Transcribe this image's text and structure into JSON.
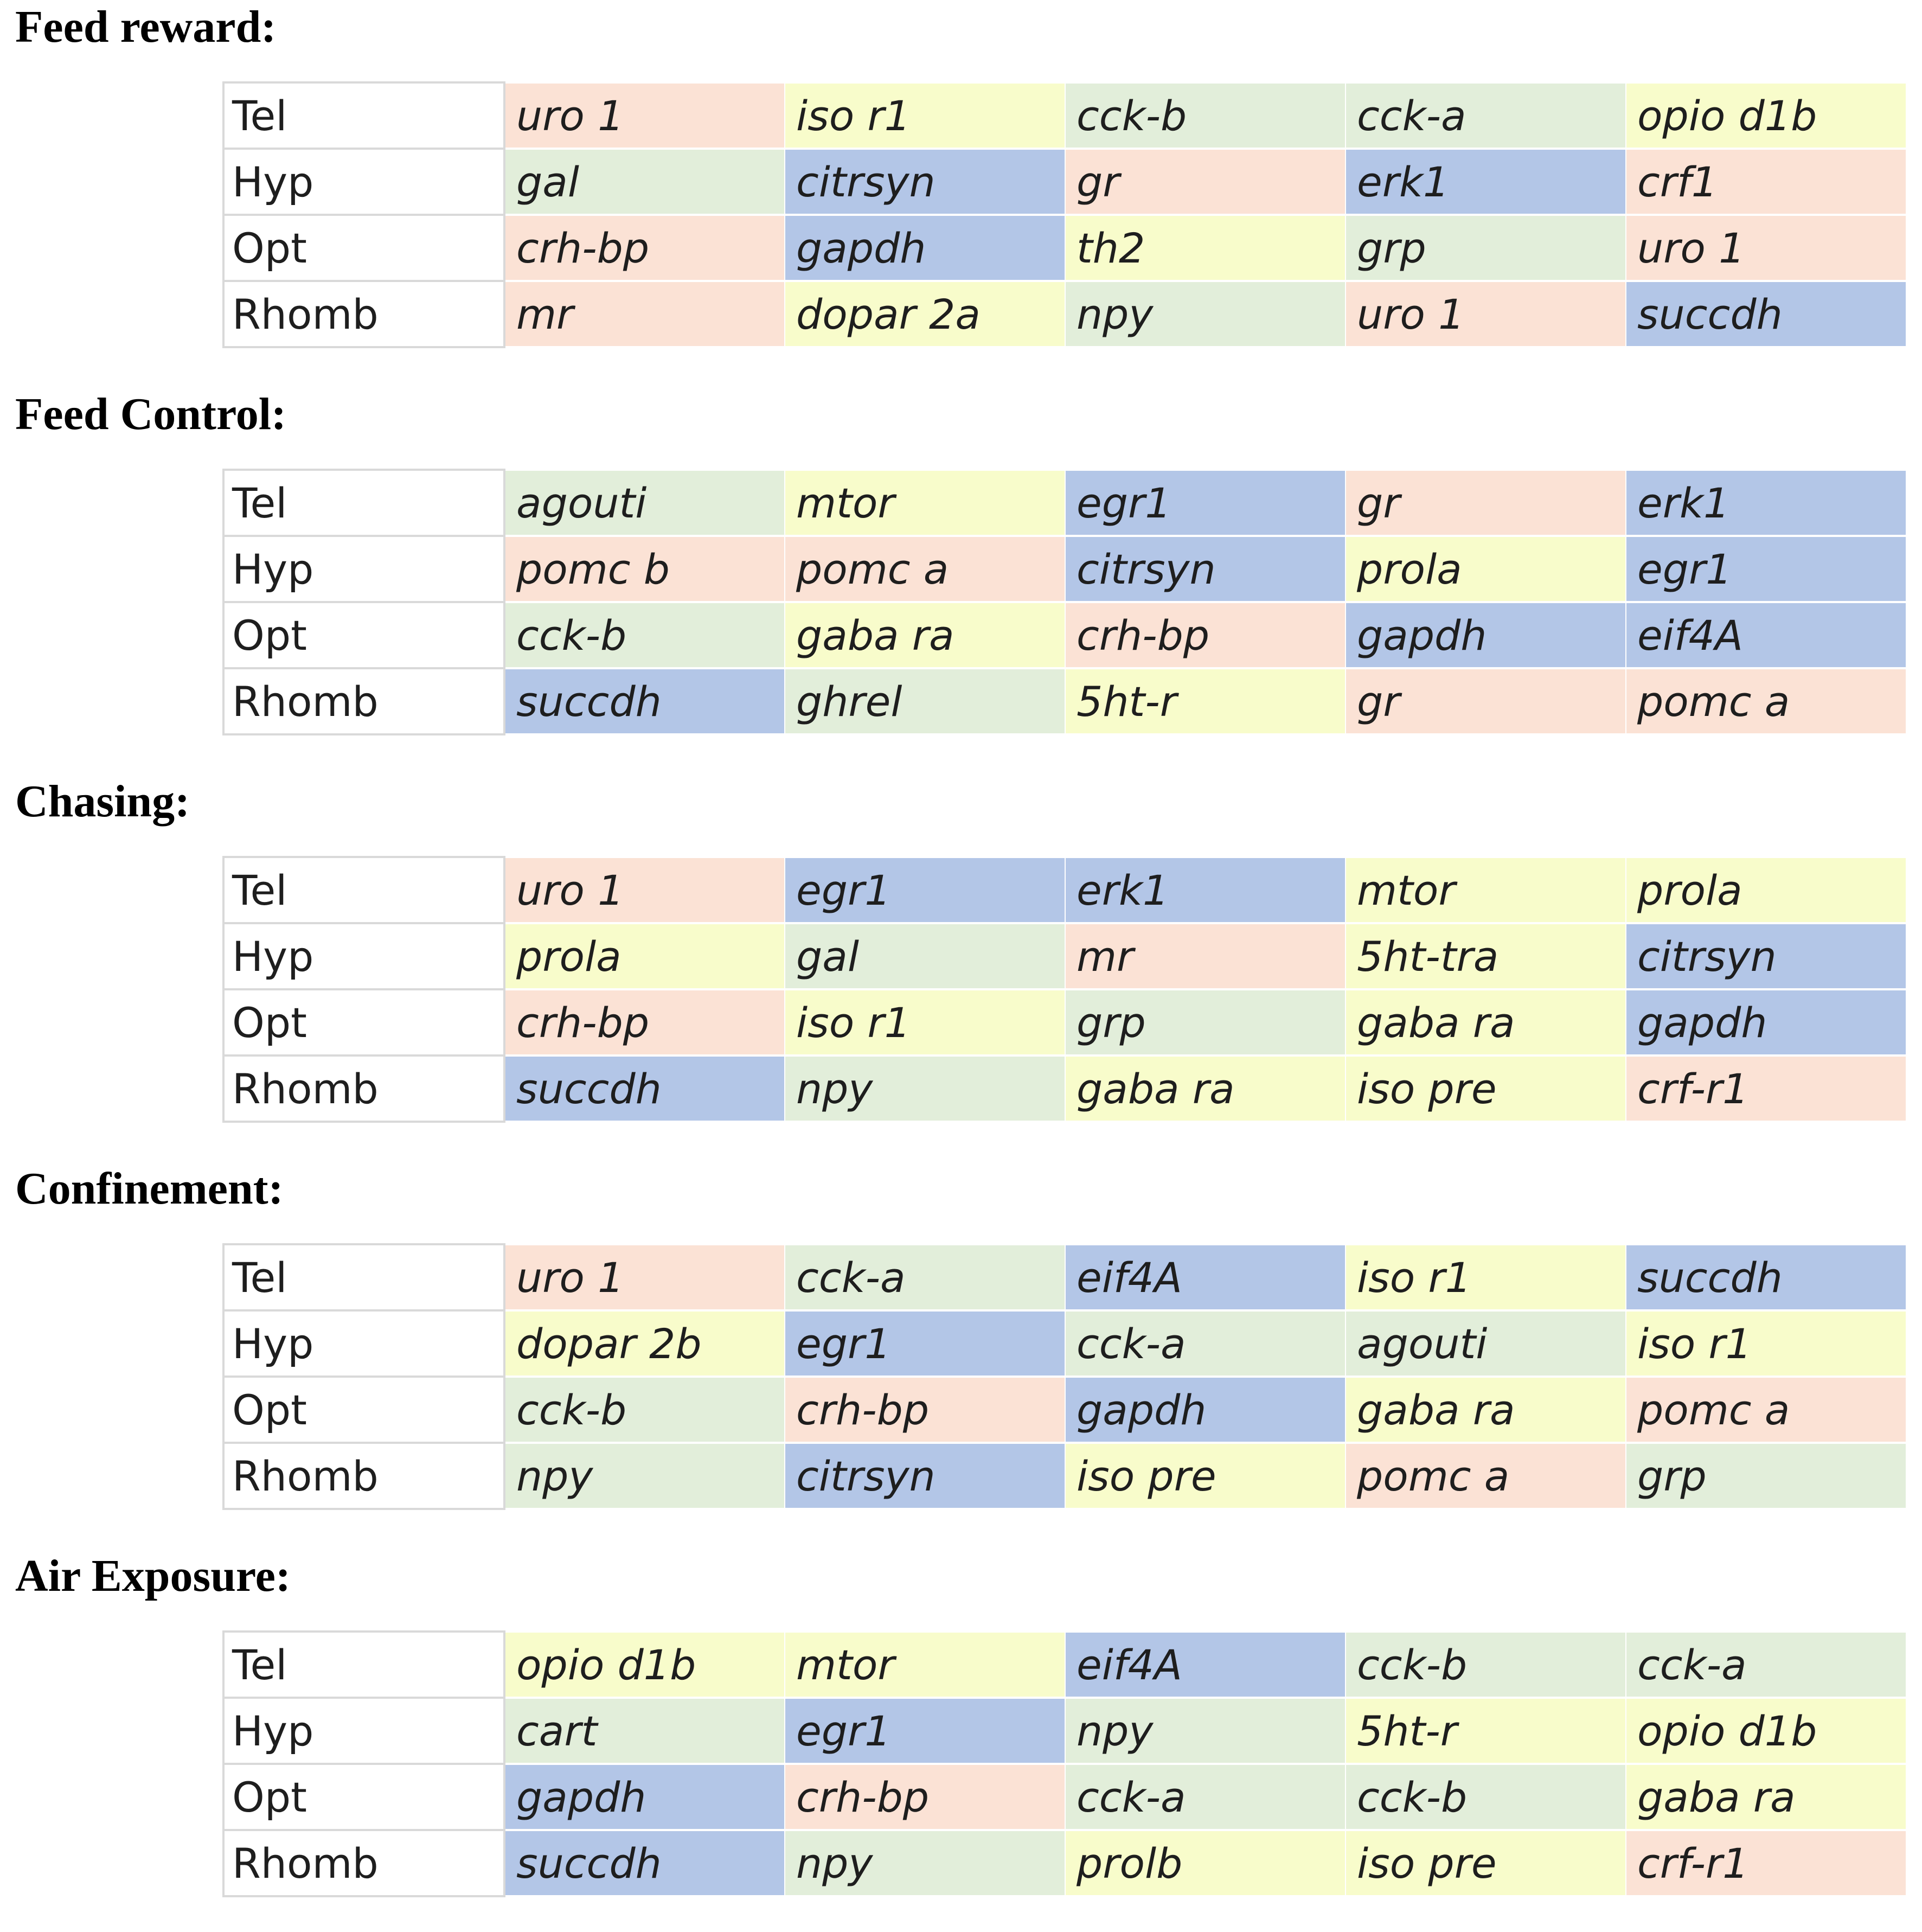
{
  "colors": {
    "pink": "#fbe2d5",
    "yellow": "#f8fccb",
    "green": "#e2eeda",
    "blue": "#b3c6e7"
  },
  "sections": [
    {
      "title": "Feed reward:",
      "rows": [
        {
          "region": "Tel",
          "genes": [
            {
              "name": "uro 1",
              "color": "pink"
            },
            {
              "name": "iso r1",
              "color": "yellow"
            },
            {
              "name": "cck-b",
              "color": "green"
            },
            {
              "name": "cck-a",
              "color": "green"
            },
            {
              "name": "opio d1b",
              "color": "yellow"
            }
          ]
        },
        {
          "region": "Hyp",
          "genes": [
            {
              "name": "gal",
              "color": "green"
            },
            {
              "name": "citrsyn",
              "color": "blue"
            },
            {
              "name": "gr",
              "color": "pink"
            },
            {
              "name": "erk1",
              "color": "blue"
            },
            {
              "name": "crf1",
              "color": "pink"
            }
          ]
        },
        {
          "region": "Opt",
          "genes": [
            {
              "name": "crh-bp",
              "color": "pink"
            },
            {
              "name": "gapdh",
              "color": "blue"
            },
            {
              "name": "th2",
              "color": "yellow"
            },
            {
              "name": "grp",
              "color": "green"
            },
            {
              "name": "uro 1",
              "color": "pink"
            }
          ]
        },
        {
          "region": "Rhomb",
          "genes": [
            {
              "name": "mr",
              "color": "pink"
            },
            {
              "name": "dopar 2a",
              "color": "yellow"
            },
            {
              "name": "npy",
              "color": "green"
            },
            {
              "name": "uro 1",
              "color": "pink"
            },
            {
              "name": "succdh",
              "color": "blue"
            }
          ]
        }
      ]
    },
    {
      "title": "Feed Control:",
      "rows": [
        {
          "region": "Tel",
          "genes": [
            {
              "name": "agouti",
              "color": "green"
            },
            {
              "name": "mtor",
              "color": "yellow"
            },
            {
              "name": "egr1",
              "color": "blue"
            },
            {
              "name": "gr",
              "color": "pink"
            },
            {
              "name": "erk1",
              "color": "blue"
            }
          ]
        },
        {
          "region": "Hyp",
          "genes": [
            {
              "name": "pomc b",
              "color": "pink"
            },
            {
              "name": "pomc a",
              "color": "pink"
            },
            {
              "name": "citrsyn",
              "color": "blue"
            },
            {
              "name": "prola",
              "color": "yellow"
            },
            {
              "name": "egr1",
              "color": "blue"
            }
          ]
        },
        {
          "region": "Opt",
          "genes": [
            {
              "name": "cck-b",
              "color": "green"
            },
            {
              "name": "gaba ra",
              "color": "yellow"
            },
            {
              "name": "crh-bp",
              "color": "pink"
            },
            {
              "name": "gapdh",
              "color": "blue"
            },
            {
              "name": "eif4A",
              "color": "blue"
            }
          ]
        },
        {
          "region": "Rhomb",
          "genes": [
            {
              "name": "succdh",
              "color": "blue"
            },
            {
              "name": "ghrel",
              "color": "green"
            },
            {
              "name": "5ht-r",
              "color": "yellow"
            },
            {
              "name": "gr",
              "color": "pink"
            },
            {
              "name": "pomc a",
              "color": "pink"
            }
          ]
        }
      ]
    },
    {
      "title": "Chasing:",
      "rows": [
        {
          "region": "Tel",
          "genes": [
            {
              "name": "uro 1",
              "color": "pink"
            },
            {
              "name": "egr1",
              "color": "blue"
            },
            {
              "name": "erk1",
              "color": "blue"
            },
            {
              "name": "mtor",
              "color": "yellow"
            },
            {
              "name": "prola",
              "color": "yellow"
            }
          ]
        },
        {
          "region": "Hyp",
          "genes": [
            {
              "name": "prola",
              "color": "yellow"
            },
            {
              "name": "gal",
              "color": "green"
            },
            {
              "name": "mr",
              "color": "pink"
            },
            {
              "name": "5ht-tra",
              "color": "yellow"
            },
            {
              "name": "citrsyn",
              "color": "blue"
            }
          ]
        },
        {
          "region": "Opt",
          "genes": [
            {
              "name": "crh-bp",
              "color": "pink"
            },
            {
              "name": "iso r1",
              "color": "yellow"
            },
            {
              "name": "grp",
              "color": "green"
            },
            {
              "name": "gaba ra",
              "color": "yellow"
            },
            {
              "name": "gapdh",
              "color": "blue"
            }
          ]
        },
        {
          "region": "Rhomb",
          "genes": [
            {
              "name": "succdh",
              "color": "blue"
            },
            {
              "name": "npy",
              "color": "green"
            },
            {
              "name": "gaba ra",
              "color": "yellow"
            },
            {
              "name": "iso pre",
              "color": "yellow"
            },
            {
              "name": "crf-r1",
              "color": "pink"
            }
          ]
        }
      ]
    },
    {
      "title": "Confinement:",
      "rows": [
        {
          "region": "Tel",
          "genes": [
            {
              "name": "uro 1",
              "color": "pink"
            },
            {
              "name": "cck-a",
              "color": "green"
            },
            {
              "name": "eif4A",
              "color": "blue"
            },
            {
              "name": "iso r1",
              "color": "yellow"
            },
            {
              "name": "succdh",
              "color": "blue"
            }
          ]
        },
        {
          "region": "Hyp",
          "genes": [
            {
              "name": "dopar 2b",
              "color": "yellow"
            },
            {
              "name": "egr1",
              "color": "blue"
            },
            {
              "name": "cck-a",
              "color": "green"
            },
            {
              "name": "agouti",
              "color": "green"
            },
            {
              "name": "iso r1",
              "color": "yellow"
            }
          ]
        },
        {
          "region": "Opt",
          "genes": [
            {
              "name": "cck-b",
              "color": "green"
            },
            {
              "name": "crh-bp",
              "color": "pink"
            },
            {
              "name": "gapdh",
              "color": "blue"
            },
            {
              "name": "gaba ra",
              "color": "yellow"
            },
            {
              "name": "pomc a",
              "color": "pink"
            }
          ]
        },
        {
          "region": "Rhomb",
          "genes": [
            {
              "name": "npy",
              "color": "green"
            },
            {
              "name": "citrsyn",
              "color": "blue"
            },
            {
              "name": "iso pre",
              "color": "yellow"
            },
            {
              "name": "pomc a",
              "color": "pink"
            },
            {
              "name": "grp",
              "color": "green"
            }
          ]
        }
      ]
    },
    {
      "title": "Air Exposure:",
      "rows": [
        {
          "region": "Tel",
          "genes": [
            {
              "name": "opio d1b",
              "color": "yellow"
            },
            {
              "name": "mtor",
              "color": "yellow"
            },
            {
              "name": "eif4A",
              "color": "blue"
            },
            {
              "name": "cck-b",
              "color": "green"
            },
            {
              "name": "cck-a",
              "color": "green"
            }
          ]
        },
        {
          "region": "Hyp",
          "genes": [
            {
              "name": "cart",
              "color": "green"
            },
            {
              "name": "egr1",
              "color": "blue"
            },
            {
              "name": "npy",
              "color": "green"
            },
            {
              "name": "5ht-r",
              "color": "yellow"
            },
            {
              "name": "opio d1b",
              "color": "yellow"
            }
          ]
        },
        {
          "region": "Opt",
          "genes": [
            {
              "name": "gapdh",
              "color": "blue"
            },
            {
              "name": "crh-bp",
              "color": "pink"
            },
            {
              "name": "cck-a",
              "color": "green"
            },
            {
              "name": "cck-b",
              "color": "green"
            },
            {
              "name": "gaba ra",
              "color": "yellow"
            }
          ]
        },
        {
          "region": "Rhomb",
          "genes": [
            {
              "name": "succdh",
              "color": "blue"
            },
            {
              "name": "npy",
              "color": "green"
            },
            {
              "name": "prolb",
              "color": "yellow"
            },
            {
              "name": "iso pre",
              "color": "yellow"
            },
            {
              "name": "crf-r1",
              "color": "pink"
            }
          ]
        }
      ]
    }
  ]
}
